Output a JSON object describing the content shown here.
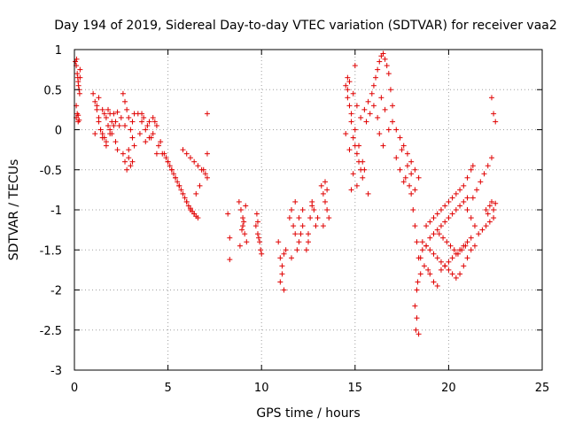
{
  "chart_data": {
    "type": "scatter",
    "title": "Day 194 of 2019, Sidereal Day-to-day VTEC variation (SDTVAR) for receiver vaa2",
    "xlabel": "GPS time / hours",
    "ylabel": "SDTVAR / TECUs",
    "xlim": [
      0,
      25
    ],
    "ylim": [
      -3,
      1
    ],
    "xticks": [
      0,
      5,
      10,
      15,
      20,
      25
    ],
    "xtick_labels": [
      "0",
      "5",
      "10",
      "15",
      "20",
      "25"
    ],
    "yticks": [
      1,
      0.5,
      0,
      -0.5,
      -1,
      -1.5,
      -2,
      -2.5,
      -3
    ],
    "ytick_labels": [
      "1",
      "0.5",
      "0",
      "-0.5",
      "-1",
      "-1.5",
      "-2",
      "-2.5",
      "-3"
    ],
    "grid": true,
    "marker": "+",
    "color": "#e00000",
    "series": [
      {
        "name": "SDTVAR",
        "x": [
          0.05,
          0.1,
          0.15,
          0.2,
          0.25,
          0.1,
          0.15,
          0.2,
          0.25,
          0.3,
          0.12,
          0.18,
          0.22,
          0.28,
          0.1,
          0.2,
          0.3,
          1.0,
          1.1,
          1.2,
          1.3,
          1.4,
          1.5,
          1.6,
          1.7,
          1.8,
          1.9,
          2.0,
          2.1,
          2.2,
          2.3,
          2.4,
          2.5,
          1.2,
          1.4,
          1.6,
          1.8,
          2.0,
          2.2,
          1.3,
          1.5,
          1.7,
          1.9,
          2.1,
          2.3,
          1.1,
          1.3,
          1.5,
          1.7,
          1.9,
          2.6,
          2.7,
          2.8,
          2.9,
          3.0,
          3.1,
          3.2,
          2.6,
          2.7,
          2.8,
          2.9,
          3.0,
          3.1,
          3.2,
          2.7,
          2.9,
          3.1,
          3.4,
          3.6,
          3.8,
          4.0,
          4.2,
          4.4,
          4.6,
          3.5,
          3.7,
          3.9,
          4.1,
          4.3,
          4.5,
          4.7,
          3.6,
          3.8,
          4.0,
          4.2,
          4.4,
          4.8,
          5.0,
          5.2,
          5.4,
          5.6,
          5.8,
          6.0,
          6.2,
          6.4,
          6.6,
          4.9,
          5.1,
          5.3,
          5.5,
          5.7,
          5.9,
          6.1,
          6.3,
          6.5,
          5.0,
          5.2,
          5.4,
          5.6,
          5.8,
          6.0,
          6.2,
          6.4,
          5.8,
          6.0,
          6.2,
          6.4,
          6.6,
          6.8,
          7.0,
          7.1,
          6.5,
          6.7,
          6.9,
          7.1,
          7.1,
          8.2,
          8.3,
          8.3,
          8.8,
          8.9,
          9.0,
          9.0,
          9.1,
          9.2,
          8.85,
          8.95,
          9.05,
          9.15,
          9.7,
          9.8,
          9.9,
          10.0,
          9.75,
          9.85,
          9.95,
          9.8,
          10.9,
          11.0,
          11.1,
          11.2,
          11.3,
          11.0,
          11.1,
          11.2,
          11.5,
          11.6,
          11.7,
          11.8,
          11.9,
          12.0,
          12.1,
          12.2,
          11.6,
          11.8,
          12.0,
          12.2,
          12.4,
          12.5,
          12.6,
          12.7,
          12.8,
          12.5,
          12.7,
          12.9,
          13.0,
          13.2,
          13.3,
          13.4,
          13.5,
          13.6,
          13.3,
          13.5,
          13.4,
          14.5,
          14.6,
          14.7,
          14.8,
          14.9,
          15.0,
          15.1,
          15.2,
          15.3,
          15.4,
          14.6,
          14.8,
          15.0,
          15.2,
          15.4,
          14.7,
          14.9,
          15.1,
          15.3,
          14.5,
          14.7,
          14.9,
          15.1,
          14.6,
          14.8,
          15.0,
          15.5,
          15.7,
          15.9,
          16.0,
          16.1,
          16.2,
          16.3,
          16.4,
          16.5,
          16.6,
          16.7,
          16.8,
          16.9,
          17.0,
          15.6,
          15.8,
          16.0,
          16.2,
          16.4,
          16.6,
          16.8,
          16.3,
          16.5,
          15.5,
          15.7,
          17.0,
          17.2,
          17.4,
          17.6,
          17.8,
          18.0,
          18.2,
          18.4,
          17.2,
          17.4,
          17.6,
          17.8,
          18.0,
          18.2,
          17.5,
          17.7,
          17.9,
          18.0,
          18.1,
          18.2,
          18.3,
          18.4,
          18.5,
          18.2,
          18.3,
          18.4,
          18.3,
          18.35,
          18.25,
          18.5,
          18.7,
          18.9,
          19.0,
          19.2,
          19.4,
          19.6,
          19.8,
          20.0,
          20.2,
          20.4,
          20.6,
          20.8,
          21.0,
          21.2,
          18.6,
          18.8,
          19.0,
          19.2,
          19.4,
          19.6,
          19.8,
          20.0,
          20.2,
          20.4,
          20.6,
          20.8,
          21.0,
          18.8,
          19.0,
          19.2,
          19.4,
          19.6,
          19.8,
          20.0,
          20.2,
          20.4,
          20.6,
          20.8,
          21.0,
          21.2,
          21.3,
          18.6,
          18.8,
          19.0,
          19.2,
          19.4,
          19.6,
          19.8,
          20.0,
          20.2,
          20.4,
          20.6,
          20.8,
          21.0,
          21.2,
          21.4,
          19.5,
          19.7,
          19.9,
          20.1,
          20.3,
          20.5,
          20.7,
          20.9,
          21.0,
          21.2,
          21.4,
          21.6,
          21.8,
          22.0,
          22.2,
          22.4,
          21.3,
          21.5,
          21.7,
          21.9,
          22.1,
          22.3,
          22.0,
          22.1,
          22.2,
          22.3,
          22.4,
          22.5,
          22.3,
          22.4,
          22.5
        ],
        "y": [
          0.85,
          0.8,
          0.7,
          0.6,
          0.5,
          0.15,
          0.2,
          0.1,
          0.12,
          0.75,
          0.88,
          0.65,
          0.55,
          0.45,
          0.3,
          0.18,
          0.65,
          0.45,
          0.35,
          0.25,
          0.1,
          0.0,
          -0.1,
          0.2,
          0.15,
          0.05,
          -0.05,
          0.1,
          0.2,
          -0.15,
          -0.25,
          0.05,
          0.15,
          0.3,
          0.0,
          -0.1,
          0.25,
          -0.05,
          0.1,
          0.4,
          -0.05,
          -0.2,
          0.2,
          0.05,
          0.22,
          -0.05,
          0.15,
          0.25,
          -0.15,
          0.0,
          0.45,
          0.35,
          0.25,
          0.15,
          0.0,
          -0.1,
          -0.2,
          -0.3,
          -0.4,
          -0.5,
          -0.35,
          -0.45,
          0.1,
          0.2,
          0.05,
          -0.25,
          -0.4,
          0.2,
          0.1,
          0.0,
          -0.1,
          0.15,
          0.05,
          -0.15,
          -0.05,
          0.15,
          0.05,
          -0.1,
          0.1,
          -0.2,
          -0.3,
          0.2,
          -0.15,
          0.1,
          -0.05,
          -0.3,
          -0.3,
          -0.4,
          -0.5,
          -0.6,
          -0.7,
          -0.8,
          -0.9,
          -1.0,
          -1.05,
          -1.1,
          -0.35,
          -0.45,
          -0.55,
          -0.65,
          -0.75,
          -0.85,
          -0.95,
          -1.02,
          -1.08,
          -0.4,
          -0.5,
          -0.6,
          -0.7,
          -0.8,
          -0.9,
          -0.98,
          -1.05,
          -0.25,
          -0.3,
          -0.35,
          -0.4,
          -0.45,
          -0.5,
          -0.55,
          -0.6,
          -0.8,
          -0.7,
          -0.5,
          -0.3,
          0.2,
          -1.05,
          -1.35,
          -1.62,
          -0.9,
          -1.0,
          -1.1,
          -1.2,
          -1.3,
          -1.4,
          -1.45,
          -1.25,
          -1.15,
          -0.95,
          -1.2,
          -1.3,
          -1.4,
          -1.55,
          -1.05,
          -1.35,
          -1.5,
          -1.15,
          -1.4,
          -1.6,
          -1.8,
          -2.0,
          -1.5,
          -1.9,
          -1.7,
          -1.55,
          -1.1,
          -1.0,
          -1.2,
          -1.3,
          -1.5,
          -1.4,
          -1.3,
          -1.2,
          -1.6,
          -0.9,
          -1.1,
          -1.0,
          -1.5,
          -1.4,
          -1.1,
          -0.9,
          -1.0,
          -1.3,
          -0.95,
          -1.2,
          -1.1,
          -0.7,
          -0.8,
          -0.9,
          -1.0,
          -1.1,
          -1.2,
          -0.75,
          -0.65,
          0.55,
          0.4,
          0.3,
          0.1,
          -0.1,
          -0.2,
          -0.3,
          -0.4,
          -0.5,
          -0.6,
          0.5,
          0.2,
          0.0,
          -0.2,
          -0.4,
          0.6,
          0.45,
          0.3,
          0.15,
          -0.05,
          -0.25,
          -0.55,
          -0.7,
          0.65,
          -0.75,
          0.8,
          0.25,
          0.35,
          0.45,
          0.55,
          0.65,
          0.75,
          0.85,
          0.92,
          0.95,
          0.88,
          0.8,
          0.7,
          0.5,
          0.3,
          0.1,
          0.2,
          0.3,
          0.15,
          0.4,
          0.25,
          0.0,
          -0.05,
          -0.2,
          -0.5,
          -0.8,
          0.1,
          0.0,
          -0.1,
          -0.2,
          -0.3,
          -0.4,
          -0.5,
          -0.6,
          -0.35,
          -0.5,
          -0.65,
          -0.45,
          -0.55,
          -0.75,
          -0.25,
          -0.6,
          -0.7,
          -0.8,
          -1.0,
          -1.2,
          -1.4,
          -1.6,
          -1.8,
          -2.2,
          -2.35,
          -2.55,
          -2.0,
          -1.9,
          -2.5,
          -1.6,
          -1.7,
          -1.75,
          -1.8,
          -1.9,
          -1.95,
          -1.75,
          -1.7,
          -1.65,
          -1.6,
          -1.55,
          -1.5,
          -1.45,
          -1.4,
          -1.35,
          -1.5,
          -1.45,
          -1.35,
          -1.3,
          -1.25,
          -1.2,
          -1.15,
          -1.1,
          -1.05,
          -1.0,
          -0.95,
          -0.9,
          -0.85,
          -1.2,
          -1.15,
          -1.1,
          -1.05,
          -1.0,
          -0.95,
          -0.9,
          -0.85,
          -0.8,
          -0.75,
          -0.7,
          -0.6,
          -0.5,
          -0.45,
          -1.4,
          -1.45,
          -1.5,
          -1.55,
          -1.6,
          -1.65,
          -1.7,
          -1.75,
          -1.8,
          -1.85,
          -1.8,
          -1.7,
          -1.6,
          -1.5,
          -1.45,
          -1.3,
          -1.35,
          -1.4,
          -1.45,
          -1.5,
          -1.55,
          -1.5,
          -1.45,
          -1.0,
          -1.1,
          -1.2,
          -1.3,
          -1.25,
          -1.2,
          -1.15,
          -1.1,
          -0.85,
          -0.75,
          -0.65,
          -0.55,
          -0.45,
          -0.35,
          -1.0,
          -1.05,
          -0.95,
          -0.9,
          -1.0,
          -0.92,
          0.4,
          0.2,
          0.1
        ]
      }
    ]
  }
}
